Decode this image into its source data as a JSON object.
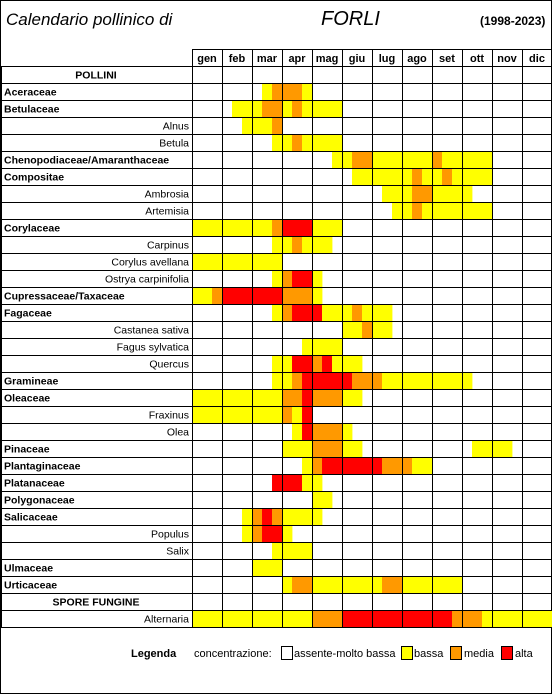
{
  "header": {
    "title": "Calendario pollinico di",
    "city": "FORLI",
    "years": "(1998-2023)"
  },
  "legend": {
    "title": "Legenda",
    "concentration_label": "concentrazione:",
    "levels": [
      {
        "key": "none",
        "label": "assente-molto bassa",
        "color": "#FFFFFF"
      },
      {
        "key": "low",
        "label": "bassa",
        "color": "#FFFF00"
      },
      {
        "key": "mid",
        "label": "media",
        "color": "#FF9900"
      },
      {
        "key": "high",
        "label": "alta",
        "color": "#FF0000"
      }
    ]
  },
  "chart_data": {
    "type": "heatmap",
    "title": "Calendario pollinico di FORLI (1998-2023)",
    "months": [
      "gen",
      "feb",
      "mar",
      "apr",
      "mag",
      "giu",
      "lug",
      "ago",
      "set",
      "ott",
      "nov",
      "dic"
    ],
    "note": "Each month split into 3 decadi; codes per decade: 0=assente-molto bassa, 1=bassa, 2=media, 3=alta",
    "sections": [
      {
        "header": "POLLINI",
        "rows": [
          {
            "name": "Aceraceae",
            "level": "family",
            "data": "000000012221000000000000000000000000"
          },
          {
            "name": "Betulaceae",
            "level": "family",
            "data": "000011122121111000000000000000000000"
          },
          {
            "name": "Alnus",
            "level": "species",
            "data": "000001112000000000000000000000000000"
          },
          {
            "name": "Betula",
            "level": "species",
            "data": "000000001121111000000000000000000000"
          },
          {
            "name": "Chenopodiaceae/Amaranthaceae",
            "level": "family",
            "data": "000000000000001122111111211111000000"
          },
          {
            "name": "Compositae",
            "level": "family",
            "data": "000000000000000011111121121111000000"
          },
          {
            "name": "Ambrosia",
            "level": "species",
            "data": "000000000000000000011122111100000000"
          },
          {
            "name": "Artemisia",
            "level": "species",
            "data": "000000000000000000001121111111000000"
          },
          {
            "name": "Corylaceae",
            "level": "family",
            "data": "111111112333111000000000000000000000"
          },
          {
            "name": "Carpinus",
            "level": "species",
            "data": "000000001121110000000000000000000000"
          },
          {
            "name": "Corylus avellana",
            "level": "species",
            "data": "111111111000000000000000000000000000"
          },
          {
            "name": "Ostrya carpinifolia",
            "level": "species",
            "data": "000000001233100000000000000000000000"
          },
          {
            "name": "Cupressaceae/Taxaceae",
            "level": "family",
            "data": "112333333222100000000000000000000000"
          },
          {
            "name": "Fagaceae",
            "level": "family",
            "data": "000000001233311121110000000000000000"
          },
          {
            "name": "Castanea sativa",
            "level": "species",
            "data": "000000000000000112110000000000000000"
          },
          {
            "name": "Fagus sylvatica",
            "level": "species",
            "data": "000000000001111000000000000000000000"
          },
          {
            "name": "Quercus",
            "level": "species",
            "data": "000000001133231110000000000000000000"
          },
          {
            "name": "Gramineae",
            "level": "family",
            "data": "000000001123333322211111111100000000"
          },
          {
            "name": "Oleaceae",
            "level": "family",
            "data": "111111111223222110000000000000000000"
          },
          {
            "name": "Fraxinus",
            "level": "species",
            "data": "111111111213000000000000000000000000"
          },
          {
            "name": "Olea",
            "level": "species",
            "data": "000000000013222100000000000000000000"
          },
          {
            "name": "Pinaceae",
            "level": "family",
            "data": "000000000111222110000000000011110000"
          },
          {
            "name": "Plantaginaceae",
            "level": "family",
            "data": "000000000001233333322211000000000000"
          },
          {
            "name": "Platanaceae",
            "level": "family",
            "data": "000000003331100000000000000000000000"
          },
          {
            "name": "Polygonaceae",
            "level": "family",
            "data": "000000000000110000000000000000000000"
          },
          {
            "name": "Salicaceae",
            "level": "family",
            "data": "000001232111100000000000000000000000"
          },
          {
            "name": "Populus",
            "level": "species",
            "data": "000001233100000000000000000000000000"
          },
          {
            "name": "Salix",
            "level": "species",
            "data": "000000001111000000000000000000000000"
          },
          {
            "name": "Ulmaceae",
            "level": "family",
            "data": "000000111000000000000000000000000000"
          },
          {
            "name": "Urticaceae",
            "level": "family",
            "data": "000000000122111111122111111000000000"
          }
        ]
      },
      {
        "header": "SPORE FUNGINE",
        "rows": [
          {
            "name": "Alternaria",
            "level": "species",
            "data": "111111111111222333333333332221111111"
          }
        ]
      }
    ]
  }
}
